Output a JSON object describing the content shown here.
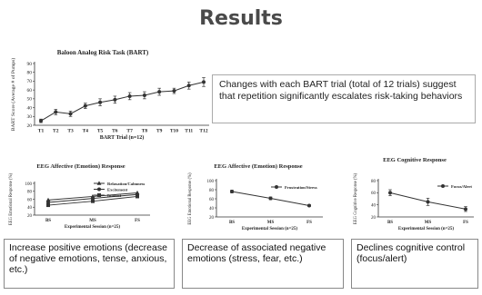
{
  "page_title": "Results",
  "callout": "Changes with each BART trial (total of 12 trials) suggest that repetition significantly escalates risk-taking behaviors",
  "boxes": [
    "Increase positive emotions (decrease of negative emotions, tense, anxious, etc.)",
    "Decrease of associated negative emotions (stress, fear, etc.)",
    "Declines cognitive control  (focus/alert)"
  ],
  "colors": {
    "line": "#333333",
    "text": "#222222"
  },
  "chart_data": [
    {
      "type": "line",
      "title": "Baloon Analog Risk Task (BART)",
      "xlabel": "BART Trial (n=12)",
      "ylabel": "BART Score (Average # of Pumps)",
      "categories": [
        "T1",
        "T2",
        "T3",
        "T4",
        "T5",
        "T6",
        "T7",
        "T8",
        "T9",
        "T10",
        "T11",
        "T12"
      ],
      "values": [
        25,
        35,
        33,
        42,
        46,
        49,
        53,
        54,
        58,
        59,
        65,
        69
      ],
      "errors": [
        2,
        3,
        3,
        3,
        4,
        4,
        4,
        4,
        4,
        3,
        4,
        5
      ],
      "ylim": [
        20,
        90
      ],
      "yticks": [
        20,
        30,
        40,
        50,
        60,
        70,
        80,
        90
      ]
    },
    {
      "type": "line",
      "title": "EEG Affective (Emotion) Response",
      "xlabel": "Experimental Session (n=25)",
      "ylabel": "EEG Emotional Response (%)",
      "categories": [
        "BS",
        "MS",
        "FS"
      ],
      "series": [
        {
          "name": "Relaxation/Calmness",
          "values": [
            58,
            67,
            76
          ],
          "marker": "triangle"
        },
        {
          "name": "Excitement",
          "values": [
            52,
            62,
            72
          ],
          "marker": "circle"
        },
        {
          "name": "Interest",
          "values": [
            45,
            55,
            67
          ],
          "marker": "square"
        }
      ],
      "ylim": [
        20,
        100
      ],
      "yticks": [
        20,
        40,
        60,
        80,
        100
      ],
      "legend": "top-right"
    },
    {
      "type": "line",
      "title": "EEG Affective (Emotion) Response",
      "xlabel": "Experimental Session (n=25)",
      "ylabel": "EEG Emotional Response (%)",
      "categories": [
        "BS",
        "MS",
        "FS"
      ],
      "series": [
        {
          "name": "Frustration/Stress",
          "values": [
            76,
            61,
            45
          ],
          "errors": [
            3,
            3,
            2
          ],
          "marker": "circle"
        }
      ],
      "ylim": [
        20,
        100
      ],
      "yticks": [
        20,
        40,
        60,
        80,
        100
      ],
      "legend": "top-right"
    },
    {
      "type": "line",
      "title": "EEG Cognitive Response",
      "xlabel": "Experimental Session (n=25)",
      "ylabel": "EEG Cognitive Response (%)",
      "categories": [
        "BS",
        "MS",
        "FS"
      ],
      "series": [
        {
          "name": "Focus/Alert",
          "values": [
            60,
            45,
            33
          ],
          "errors": [
            5,
            6,
            4
          ],
          "marker": "circle"
        }
      ],
      "ylim": [
        20,
        80
      ],
      "yticks": [
        20,
        40,
        60,
        80
      ],
      "legend": "top-right"
    }
  ]
}
